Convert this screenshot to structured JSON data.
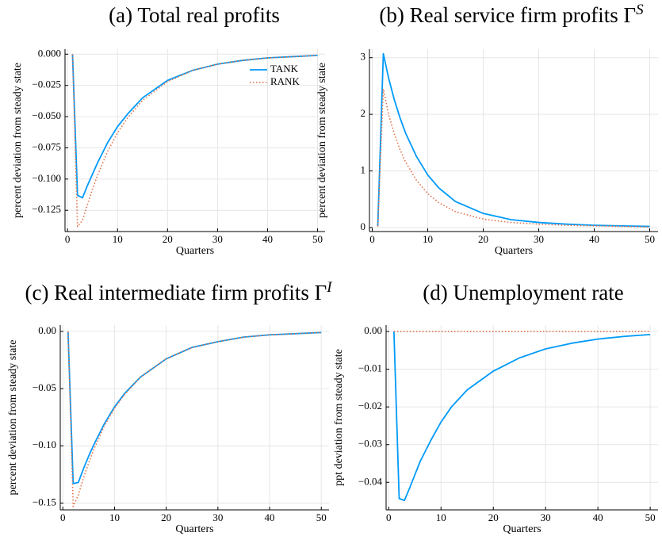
{
  "chart_data": [
    {
      "type": "line",
      "title": "(a) Total real profits",
      "xlabel": "Quarters",
      "ylabel": "percent deviation from steady state",
      "x": [
        1,
        2,
        3,
        4,
        5,
        6,
        8,
        10,
        12,
        15,
        20,
        25,
        30,
        35,
        40,
        45,
        50
      ],
      "series": [
        {
          "name": "TANK",
          "color": "#009af9",
          "style": "solid",
          "values": [
            0,
            -0.113,
            -0.115,
            -0.105,
            -0.096,
            -0.087,
            -0.071,
            -0.058,
            -0.048,
            -0.035,
            -0.021,
            -0.013,
            -0.008,
            -0.005,
            -0.003,
            -0.002,
            -0.001
          ]
        },
        {
          "name": "RANK",
          "color": "#e26f46",
          "style": "dotted",
          "values": [
            0,
            -0.138,
            -0.133,
            -0.12,
            -0.108,
            -0.097,
            -0.078,
            -0.063,
            -0.051,
            -0.037,
            -0.022,
            -0.013,
            -0.008,
            -0.005,
            -0.003,
            -0.002,
            -0.001
          ]
        }
      ],
      "legend": "top-right",
      "grid": true,
      "xlim": [
        -0.5,
        51.5
      ],
      "xticks": [
        0,
        10,
        20,
        30,
        40,
        50
      ],
      "ylim": [
        -0.142,
        0.004
      ],
      "yticks": [
        {
          "value": 0,
          "label": "0.000"
        },
        {
          "value": -0.025,
          "label": "−0.025"
        },
        {
          "value": -0.05,
          "label": "−0.050"
        },
        {
          "value": -0.075,
          "label": "−0.075"
        },
        {
          "value": -0.1,
          "label": "−0.100"
        },
        {
          "value": -0.125,
          "label": "−0.125"
        }
      ]
    },
    {
      "type": "line",
      "title": "(b) Real service firm profits Γ",
      "title_superscript": "S",
      "xlabel": "Quarters",
      "ylabel": "percent deviation from steady state",
      "x": [
        1,
        2,
        3,
        4,
        5,
        6,
        8,
        10,
        12,
        15,
        20,
        25,
        30,
        35,
        40,
        45,
        50
      ],
      "series": [
        {
          "color": "#009af9",
          "style": "solid",
          "values": [
            0.02,
            3.07,
            2.62,
            2.25,
            1.94,
            1.67,
            1.25,
            0.93,
            0.7,
            0.46,
            0.25,
            0.14,
            0.09,
            0.06,
            0.04,
            0.03,
            0.02
          ]
        },
        {
          "color": "#e26f46",
          "style": "dotted",
          "values": [
            0.02,
            2.45,
            1.98,
            1.65,
            1.38,
            1.16,
            0.83,
            0.6,
            0.44,
            0.28,
            0.15,
            0.09,
            0.06,
            0.04,
            0.03,
            0.02,
            0.01
          ]
        }
      ],
      "grid": true,
      "xlim": [
        -0.5,
        51.5
      ],
      "xticks": [
        0,
        10,
        20,
        30,
        40,
        50
      ],
      "ylim": [
        -0.07,
        3.15
      ],
      "yticks": [
        0,
        1,
        2,
        3
      ]
    },
    {
      "type": "line",
      "title": "(c) Real intermediate firm profits Γ",
      "title_superscript": "I",
      "xlabel": "Quarters",
      "ylabel": "percent deviation from steady state",
      "x": [
        1,
        2,
        3,
        4,
        5,
        6,
        8,
        10,
        12,
        15,
        20,
        25,
        30,
        35,
        40,
        45,
        50
      ],
      "series": [
        {
          "color": "#009af9",
          "style": "solid",
          "values": [
            0,
            -0.133,
            -0.132,
            -0.12,
            -0.109,
            -0.099,
            -0.081,
            -0.066,
            -0.054,
            -0.04,
            -0.024,
            -0.014,
            -0.009,
            -0.005,
            -0.003,
            -0.002,
            -0.001
          ]
        },
        {
          "color": "#e26f46",
          "style": "dotted",
          "values": [
            0,
            -0.153,
            -0.143,
            -0.128,
            -0.115,
            -0.103,
            -0.083,
            -0.067,
            -0.055,
            -0.04,
            -0.024,
            -0.014,
            -0.009,
            -0.005,
            -0.003,
            -0.002,
            -0.001
          ]
        }
      ],
      "grid": true,
      "xlim": [
        -0.5,
        51.5
      ],
      "xticks": [
        0,
        10,
        20,
        30,
        40,
        50
      ],
      "ylim": [
        -0.156,
        0.0055
      ],
      "yticks": [
        {
          "value": 0,
          "label": "0.00"
        },
        {
          "value": -0.05,
          "label": "−0.05"
        },
        {
          "value": -0.1,
          "label": "−0.10"
        },
        {
          "value": -0.15,
          "label": "−0.15"
        }
      ]
    },
    {
      "type": "line",
      "title": "(d) Unemployment rate",
      "xlabel": "Quarters",
      "ylabel": "ppt deviation from steady state",
      "x": [
        1,
        2,
        3,
        4,
        5,
        6,
        8,
        10,
        12,
        15,
        20,
        25,
        30,
        35,
        40,
        45,
        50
      ],
      "series": [
        {
          "color": "#009af9",
          "style": "solid",
          "values": [
            0,
            -0.0443,
            -0.0448,
            -0.0415,
            -0.038,
            -0.0345,
            -0.029,
            -0.024,
            -0.02,
            -0.0155,
            -0.0105,
            -0.007,
            -0.0046,
            -0.0031,
            -0.002,
            -0.0013,
            -0.0008
          ]
        },
        {
          "color": "#e26f46",
          "style": "dotted",
          "values": [
            0,
            0,
            0,
            0,
            0,
            0,
            0,
            0,
            0,
            0,
            0,
            0,
            0,
            0,
            0,
            0,
            0
          ]
        }
      ],
      "grid": true,
      "xlim": [
        -0.5,
        51.5
      ],
      "xticks": [
        0,
        10,
        20,
        30,
        40,
        50
      ],
      "ylim": [
        -0.0473,
        0.0017
      ],
      "yticks": [
        {
          "value": 0,
          "label": "0.00"
        },
        {
          "value": -0.01,
          "label": "−0.01"
        },
        {
          "value": -0.02,
          "label": "−0.02"
        },
        {
          "value": -0.03,
          "label": "−0.03"
        },
        {
          "value": -0.04,
          "label": "−0.04"
        }
      ]
    }
  ]
}
